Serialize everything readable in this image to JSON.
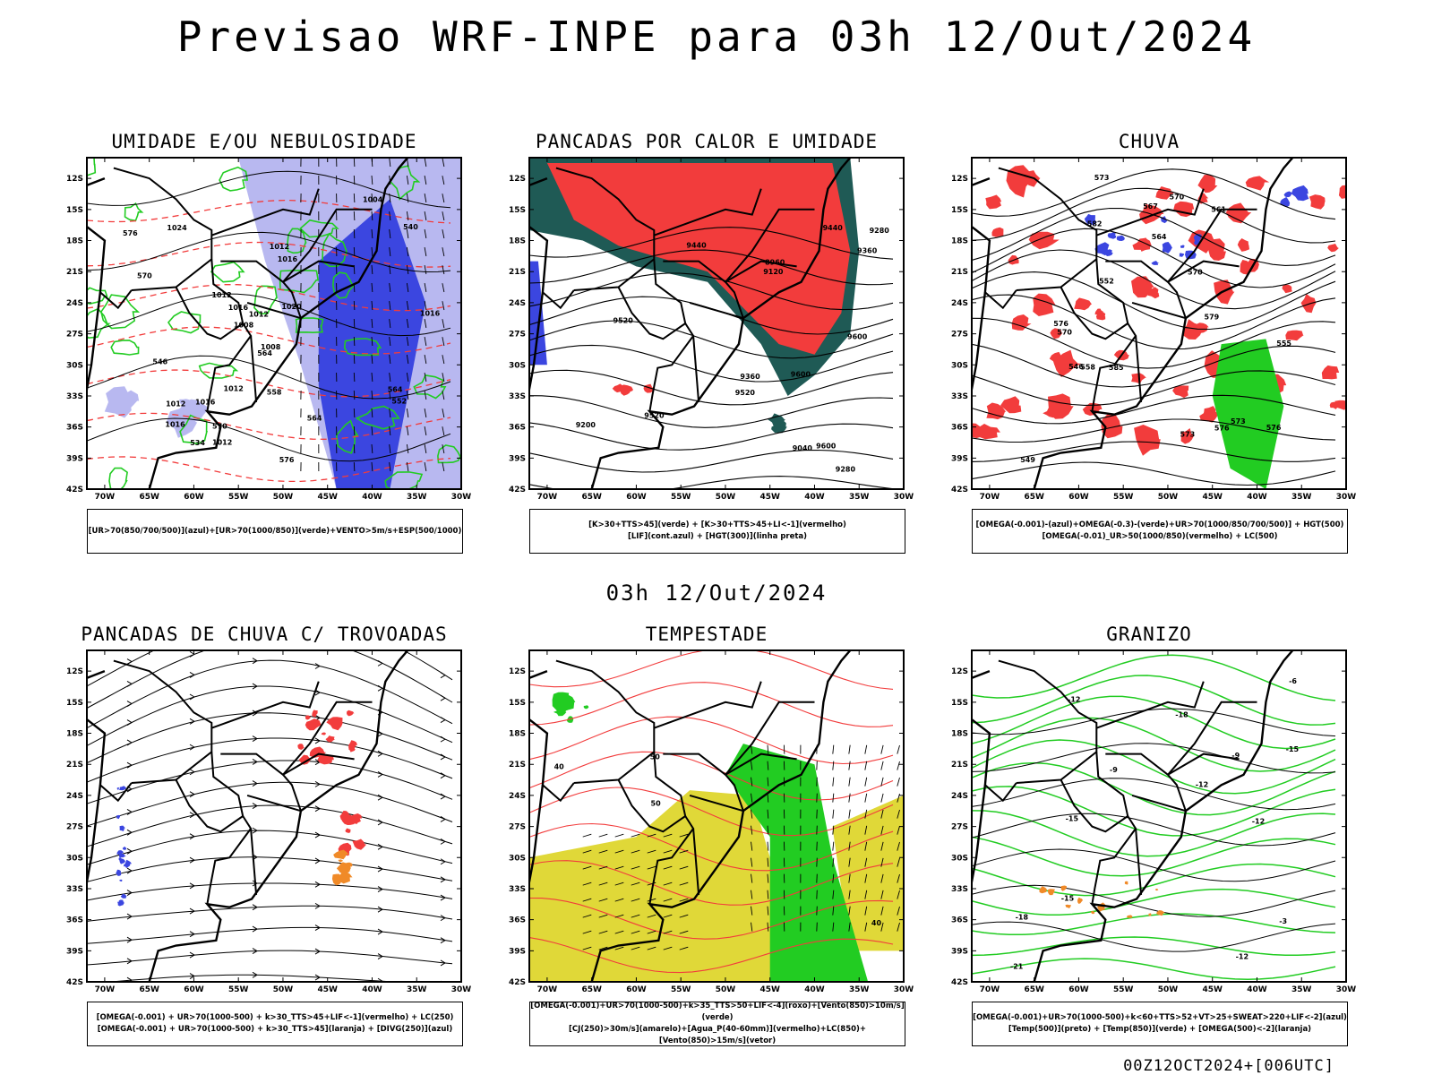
{
  "title": "Previsao WRF-INPE  para 03h 12/Out/2024",
  "mid_title": "03h 12/Out/2024",
  "footer": "00Z12OCT2024+[006UTC]",
  "axes": {
    "lat_labels": [
      "12S",
      "15S",
      "18S",
      "21S",
      "24S",
      "27S",
      "30S",
      "33S",
      "36S",
      "39S",
      "42S"
    ],
    "lon_labels": [
      "70W",
      "65W",
      "60W",
      "55W",
      "50W",
      "45W",
      "40W",
      "35W",
      "30W"
    ]
  },
  "colors": {
    "blue": "#3b46e0",
    "light_blue": "#b8b8f0",
    "green": "#22cc22",
    "red": "#f23c3c",
    "dark_teal": "#1f5a55",
    "orange": "#f08a28",
    "yellow": "#e0d838"
  },
  "panels": [
    {
      "title": "UMIDADE E/OU NEBULOSIDADE",
      "legend": [
        "[UR>70(850/700/500)](azul)+[UR>70(1000/850)](verde)+VENTO>5m/s+ESP(500/1000)"
      ],
      "contour_labels": [
        "1012",
        "1012",
        "1012",
        "1016",
        "1016",
        "1012",
        "1008",
        "1012",
        "1020",
        "1024",
        "1004",
        "1008",
        "1016",
        "1012",
        "1016",
        "1016",
        "570",
        "576",
        "576",
        "564",
        "564",
        "558",
        "552",
        "546",
        "540",
        "534",
        "570",
        "564"
      ]
    },
    {
      "title": "PANCADAS POR CALOR E UMIDADE",
      "legend": [
        "[K>30+TTS>45](verde) + [K>30+TTS>45+LI<-1](vermelho)",
        "[LIF](cont.azul) + [HGT(300)](linha preta)"
      ],
      "contour_labels": [
        "9600",
        "9520",
        "9440",
        "9600",
        "9520",
        "9360",
        "9280",
        "9200",
        "9120",
        "9040",
        "8960",
        "9600",
        "9520",
        "9440",
        "9360",
        "9280"
      ]
    },
    {
      "title": "CHUVA",
      "legend": [
        "[OMEGA(-0.001)-(azul)+OMEGA(-0.3)-(verde)+UR>70(1000/850/700/500)] + HGT(500)",
        "[OMEGA(-0.01)_UR>50(1000/850)(vermelho) + LC(500)"
      ],
      "contour_labels": [
        "585",
        "582",
        "579",
        "576",
        "573",
        "570",
        "576",
        "573",
        "570",
        "567",
        "564",
        "561",
        "558",
        "555",
        "552",
        "549",
        "546",
        "576",
        "573",
        "570"
      ]
    },
    {
      "title": "PANCADAS DE CHUVA C/ TROVOADAS",
      "legend": [
        "[OMEGA(-0.001) + UR>70(1000-500) + k>30_TTS>45+LIF<-1](vermelho) + LC(250)",
        "[OMEGA(-0.001) + UR>70(1000-500) + k>30_TTS>45](laranja) + [DIVG(250)](azul)"
      ],
      "contour_labels": []
    },
    {
      "title": "TEMPESTADE",
      "legend": [
        "[OMEGA(-0.001)+UR>70(1000-500)+k>35_TTS>50+LIF<-4](roxo)+[Vento(850)>10m/s](verde)",
        "[CJ(250)>30m/s](amarelo)+[Agua_P(40-60mm)](vermelho)+LC(850)+[Vento(850)>15m/s](vetor)"
      ],
      "contour_labels": [
        "50",
        "40",
        "50",
        "40"
      ]
    },
    {
      "title": "GRANIZO",
      "legend": [
        "[OMEGA(-0.001)+UR>70(1000-500)+k<60+TTS>52+VT>25+SWEAT>220+LIF<-2](azul)",
        "[Temp(500)](preto) + [Temp(850)](verde) + [OMEGA(500)<-2](laranja)"
      ],
      "contour_labels": [
        "-9",
        "-12",
        "-15",
        "-18",
        "-21",
        "-12",
        "-12",
        "-15",
        "-3",
        "-6",
        "-9",
        "-12",
        "-15",
        "-18"
      ]
    }
  ]
}
